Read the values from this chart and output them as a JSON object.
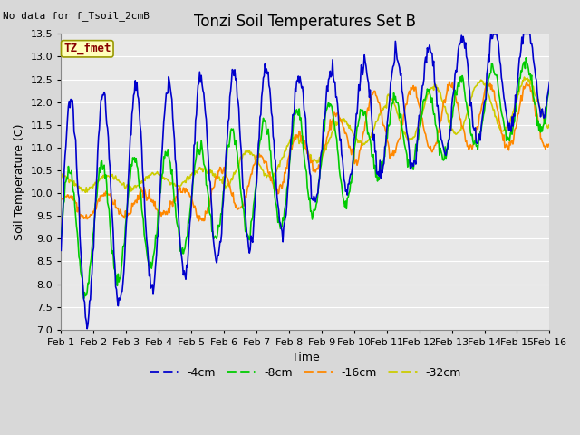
{
  "title": "Tonzi Soil Temperatures Set B",
  "no_data_text": "No data for f_Tsoil_2cmB",
  "annotation_text": "TZ_fmet",
  "ylabel": "Soil Temperature (C)",
  "xlabel": "Time",
  "ylim": [
    7.0,
    13.5
  ],
  "yticks": [
    7.0,
    7.5,
    8.0,
    8.5,
    9.0,
    9.5,
    10.0,
    10.5,
    11.0,
    11.5,
    12.0,
    12.5,
    13.0,
    13.5
  ],
  "xtick_labels": [
    "Feb 1",
    "Feb 2",
    "Feb 3",
    "Feb 4",
    "Feb 5",
    "Feb 6",
    "Feb 7",
    "Feb 8",
    "Feb 9",
    "Feb 10",
    "Feb 11",
    "Feb 12",
    "Feb 13",
    "Feb 14",
    "Feb 15",
    "Feb 16"
  ],
  "colors": {
    "4cm": "#0000cc",
    "8cm": "#00cc00",
    "16cm": "#ff8800",
    "32cm": "#cccc00"
  },
  "legend_labels": [
    "-4cm",
    "-8cm",
    "-16cm",
    "-32cm"
  ],
  "fig_bg_color": "#d8d8d8",
  "plot_bg_color": "#e8e8e8",
  "grid_color": "#ffffff",
  "annotation_box_facecolor": "#ffffbb",
  "annotation_box_edgecolor": "#999900",
  "annotation_text_color": "#880000",
  "title_fontsize": 12,
  "axis_label_fontsize": 9,
  "tick_fontsize": 8,
  "legend_fontsize": 9,
  "no_data_fontsize": 8,
  "linewidth": 1.2
}
